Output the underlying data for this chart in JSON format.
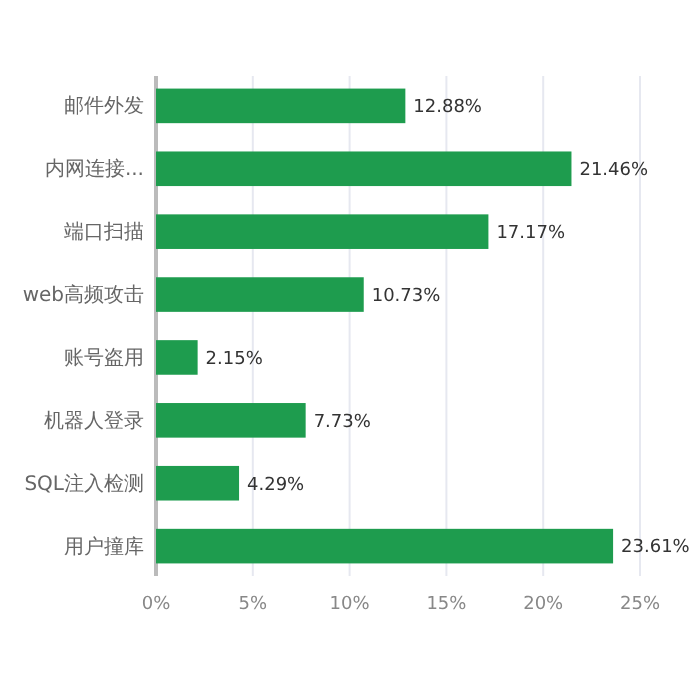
{
  "chart_data": {
    "type": "bar",
    "orientation": "horizontal",
    "categories": [
      "邮件外发",
      "内网连接...",
      "端口扫描",
      "web高频攻击",
      "账号盗用",
      "机器人登录",
      "SQL注入检测",
      "用户撞库"
    ],
    "values": [
      12.88,
      21.46,
      17.17,
      10.73,
      2.15,
      7.73,
      4.29,
      23.61
    ],
    "value_labels": [
      "12.88%",
      "21.46%",
      "17.17%",
      "10.73%",
      "2.15%",
      "7.73%",
      "4.29%",
      "23.61%"
    ],
    "color": "#1e9c4e",
    "xlim": [
      0,
      25
    ],
    "xticks": [
      {
        "value": 0,
        "label": "0%"
      },
      {
        "value": 5,
        "label": "5%"
      },
      {
        "value": 10,
        "label": "10%"
      },
      {
        "value": 15,
        "label": "15%"
      },
      {
        "value": 20,
        "label": "20%"
      },
      {
        "value": 25,
        "label": "25%"
      }
    ],
    "grid": "x"
  }
}
